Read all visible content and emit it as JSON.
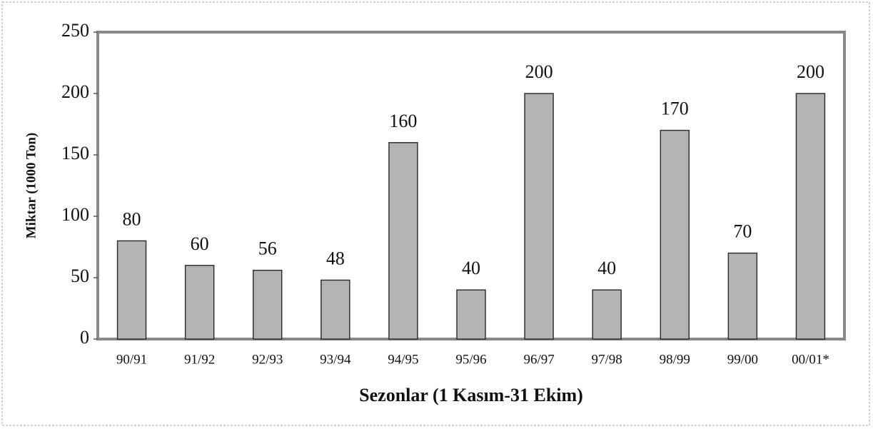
{
  "chart_data": {
    "type": "bar",
    "xlabel": "Sezonlar (1 Kasım-31 Ekim)",
    "ylabel": "Miktar (1000 Ton)",
    "categories": [
      "90/91",
      "91/92",
      "92/93",
      "93/94",
      "94/95",
      "95/96",
      "96/97",
      "97/98",
      "98/99",
      "99/00",
      "00/01*"
    ],
    "values": [
      80,
      60,
      56,
      48,
      160,
      40,
      200,
      40,
      170,
      70,
      200
    ],
    "color": "#b4b4b4",
    "ylim": [
      0,
      250
    ],
    "yticks": [
      0,
      50,
      100,
      150,
      200,
      250
    ],
    "grid": false
  }
}
